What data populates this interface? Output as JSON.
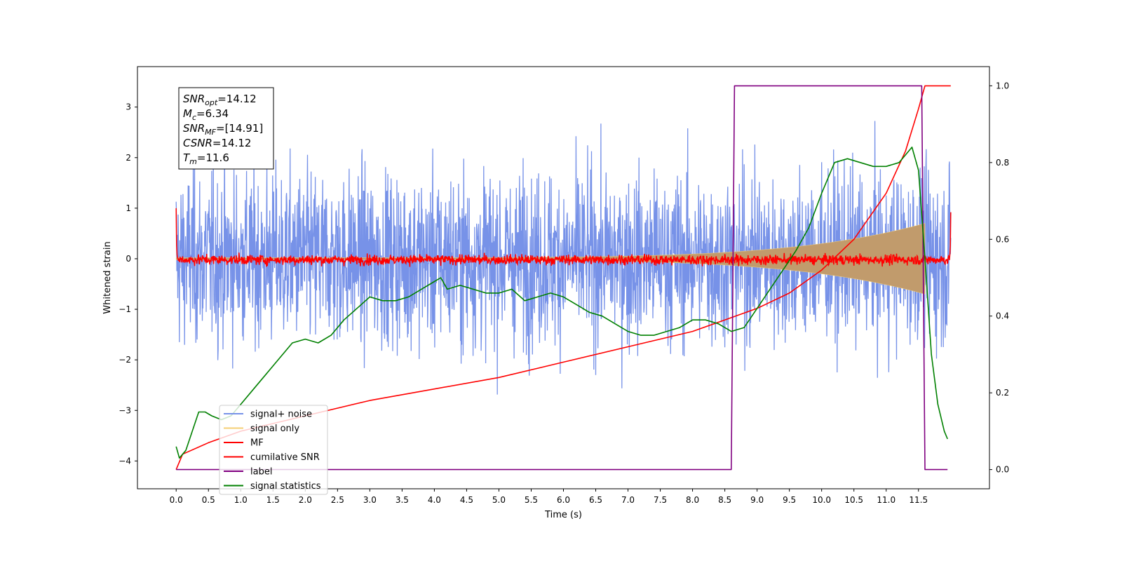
{
  "chart_data": {
    "type": "line",
    "xlabel": "Time (s)",
    "ylabel": "Whitened strain",
    "xlim": [
      -0.6,
      12.6
    ],
    "ylim": [
      -4.55,
      3.8
    ],
    "ylim_right": [
      -0.05,
      1.05
    ],
    "x_ticks": [
      0.0,
      0.5,
      1.0,
      1.5,
      2.0,
      2.5,
      3.0,
      3.5,
      4.0,
      4.5,
      5.0,
      5.5,
      6.0,
      6.5,
      7.0,
      7.5,
      8.0,
      8.5,
      9.0,
      9.5,
      10.0,
      10.5,
      11.0,
      11.5
    ],
    "x_tick_labels": [
      "0.0",
      "0.5",
      "1.0",
      "1.5",
      "2.0",
      "2.5",
      "3.0",
      "3.5",
      "4.0",
      "4.5",
      "5.0",
      "5.5",
      "6.0",
      "6.5",
      "7.0",
      "7.5",
      "8.0",
      "8.5",
      "9.0",
      "9.5",
      "10.0",
      "10.5",
      "11.0",
      "11.5"
    ],
    "y_ticks": [
      3,
      2,
      1,
      0,
      -1,
      -2,
      -3,
      -4
    ],
    "y_tick_labels": [
      "3",
      "2",
      "1",
      "0",
      "−1",
      "−2",
      "−3",
      "−4"
    ],
    "y_right_ticks": [
      1.0,
      0.8,
      0.6,
      0.4,
      0.2,
      0.0
    ],
    "y_right_tick_labels": [
      "1.0",
      "0.8",
      "0.6",
      "0.4",
      "0.2",
      "0.0"
    ],
    "grid": false,
    "legend_position": "lower-left",
    "annotation": {
      "lines": [
        {
          "sym": "SNR",
          "sub": "opt",
          "val": "=14.12"
        },
        {
          "sym": "M",
          "sub": "c",
          "val": "=6.34"
        },
        {
          "sym": "SNR",
          "sub": "MF",
          "val": "=[14.91]"
        },
        {
          "sym": "CSNR",
          "sub": "",
          "val": "=14.12"
        },
        {
          "sym": "T",
          "sub": "m",
          "val": "=11.6"
        }
      ]
    },
    "series": [
      {
        "name": "signal+ noise",
        "color": "#7792e8",
        "axis": "left",
        "description_values": {
          "x_range": [
            0.0,
            12.0
          ],
          "y_range": [
            -3.3,
            3.3
          ],
          "noise_std": 0.85
        }
      },
      {
        "name": "signal only",
        "color": "#f5cf75",
        "axis": "left",
        "description_values": {
          "x_range": [
            0.0,
            11.6
          ],
          "envelope_start": 0.02,
          "envelope_end": 0.7
        }
      },
      {
        "name": "MF",
        "color": "#ff0000",
        "axis": "left",
        "description_values": {
          "x_range": [
            0.0,
            12.0
          ],
          "level": -0.02,
          "noise_std": 0.05,
          "start_value": 1.0,
          "end_value": 0.92
        }
      },
      {
        "name": "cumilative SNR",
        "color": "#ff0000",
        "axis": "right",
        "x": [
          0.0,
          0.1,
          0.5,
          1.0,
          2.0,
          3.0,
          4.0,
          5.0,
          6.0,
          7.0,
          8.0,
          8.5,
          9.0,
          9.5,
          10.0,
          10.5,
          11.0,
          11.3,
          11.5,
          11.6,
          12.0
        ],
        "y": [
          0.0,
          0.04,
          0.07,
          0.1,
          0.14,
          0.18,
          0.21,
          0.24,
          0.28,
          0.32,
          0.36,
          0.39,
          0.42,
          0.46,
          0.52,
          0.6,
          0.72,
          0.83,
          0.94,
          1.0,
          1.0
        ]
      },
      {
        "name": "label",
        "color": "#800080",
        "axis": "right",
        "x": [
          0.0,
          8.6,
          8.65,
          11.55,
          11.6,
          11.95
        ],
        "y": [
          0.0,
          0.0,
          1.0,
          1.0,
          0.0,
          0.0
        ]
      },
      {
        "name": "signal statistics",
        "color": "#008000",
        "axis": "right",
        "x": [
          0.0,
          0.05,
          0.15,
          0.25,
          0.35,
          0.45,
          0.55,
          0.7,
          0.85,
          1.0,
          1.2,
          1.4,
          1.6,
          1.8,
          2.0,
          2.2,
          2.4,
          2.6,
          2.8,
          3.0,
          3.2,
          3.4,
          3.6,
          3.8,
          4.0,
          4.1,
          4.2,
          4.4,
          4.6,
          4.8,
          5.0,
          5.2,
          5.4,
          5.6,
          5.8,
          6.0,
          6.2,
          6.4,
          6.6,
          6.8,
          7.0,
          7.2,
          7.4,
          7.6,
          7.8,
          8.0,
          8.2,
          8.4,
          8.6,
          8.8,
          9.0,
          9.2,
          9.4,
          9.6,
          9.8,
          10.0,
          10.2,
          10.4,
          10.6,
          10.8,
          11.0,
          11.2,
          11.3,
          11.4,
          11.5,
          11.6,
          11.7,
          11.8,
          11.9,
          11.95
        ],
        "y": [
          0.06,
          0.03,
          0.05,
          0.1,
          0.15,
          0.15,
          0.14,
          0.13,
          0.14,
          0.17,
          0.21,
          0.25,
          0.29,
          0.33,
          0.34,
          0.33,
          0.35,
          0.39,
          0.42,
          0.45,
          0.44,
          0.44,
          0.45,
          0.47,
          0.49,
          0.5,
          0.47,
          0.48,
          0.47,
          0.46,
          0.46,
          0.47,
          0.44,
          0.45,
          0.46,
          0.45,
          0.43,
          0.41,
          0.4,
          0.38,
          0.36,
          0.35,
          0.35,
          0.36,
          0.37,
          0.39,
          0.39,
          0.38,
          0.36,
          0.37,
          0.42,
          0.47,
          0.52,
          0.57,
          0.63,
          0.72,
          0.8,
          0.81,
          0.8,
          0.79,
          0.79,
          0.8,
          0.82,
          0.84,
          0.78,
          0.55,
          0.3,
          0.17,
          0.1,
          0.08
        ]
      }
    ]
  }
}
